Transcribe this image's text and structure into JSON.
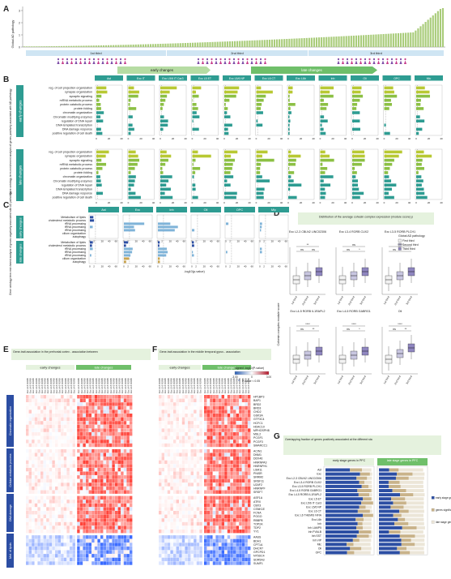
{
  "panel_labels": [
    "A",
    "B",
    "C",
    "D",
    "E",
    "F",
    "G"
  ],
  "panelA": {
    "ylabel": "Global AD pathology",
    "thirds": [
      "1st third",
      "2nd third",
      "3rd third"
    ],
    "arrows": [
      "early changes",
      "late changes"
    ],
    "yticks": [
      "0",
      "1",
      "2",
      "3"
    ]
  },
  "cell_types_B": [
    "Ast",
    "Exc IT",
    "Exc L5/6 IT Car3",
    "Exc L5 ET",
    "Exc L5/6 NP",
    "Exc L6 CT",
    "Exc L6b",
    "Inh",
    "Oli",
    "OPC",
    "Mic"
  ],
  "processes_B": [
    "reg. of cell projection organization",
    "synapse organization",
    "synaptic signaling",
    "mRNA metabolic process",
    "protein catabolic process",
    "protein folding",
    "chromatin organization",
    "Chromatin modifying enzymes",
    "regulation of DNA repair",
    "DNA templated transcription",
    "DNA damage response",
    "positive regulation of cell death"
  ],
  "panelB": {
    "ylabel": "Gene ontology term enrichment analysis of genes positively associated with AD pathology",
    "row_labels": [
      "early changes",
      "late changes"
    ],
    "xlabel": "-log10(p-value)",
    "xticks": [
      "0",
      "20",
      "40"
    ]
  },
  "cell_types_C": [
    "Ast",
    "Exc",
    "Inh",
    "Oli",
    "OPC",
    "Mic"
  ],
  "processes_C": [
    "Metabolism of lipids",
    "cholesterol metabolic process",
    "rRNA processing",
    "tRNA processing",
    "rRNA processing",
    "cilium organization",
    "autophagy"
  ],
  "panelC": {
    "ylabel": "Gene ontology term enrichment analysis of genes negatively associated with AD pathology",
    "row_labels": [
      "early changes",
      "late changes"
    ],
    "xlabel": "-log10(p-value)",
    "xticks": [
      "0",
      "2",
      "20",
      "40",
      "60"
    ]
  },
  "panelD": {
    "title": "Distribution of the average cohesin complex expression (module score) per individual in the cell types indicated",
    "ylabel": "Cohesin complex module score",
    "legend_title": "Global AD pathology",
    "legend": [
      "First third",
      "Second third",
      "Third third"
    ],
    "xcats": [
      "1st third",
      "2nd third",
      "3rd third"
    ],
    "plots": [
      {
        "title": "Exc L2-3 CBLN2 LINC02306",
        "sig": [
          "ns",
          "ns",
          "**"
        ]
      },
      {
        "title": "Exc L3-4 RORB CUX2",
        "sig": [
          "ns",
          "*",
          "ns"
        ]
      },
      {
        "title": "Exc L3-5 RORB PLCH1",
        "sig": [
          "ns",
          "*",
          "****"
        ]
      },
      {
        "title": "Exc L4-5 RORB IL1RAPL2",
        "sig": [
          "ns",
          "**",
          "****"
        ]
      },
      {
        "title": "Exc L4-5 RORB GABRG1",
        "sig": [
          "ns",
          "*",
          "****"
        ]
      },
      {
        "title": "Oli",
        "sig": [
          "ns",
          "**",
          "****"
        ]
      }
    ]
  },
  "panelE": {
    "title": "Gene-trait association in the prefrontal cortex - association between the expression level of genes (rows) and global AD pathology",
    "headers": [
      "early changes",
      "late changes"
    ]
  },
  "panelF": {
    "title": "Gene-trait association in the middle temporal gyrus - association between the expression level of genes (rows) and continuous pseudo-progression score",
    "headers": [
      "early changes",
      "late changes"
    ],
    "colorbar_label": "signed -log10(P-value)",
    "colorbar_ticks": [
      "-3.00",
      "0",
      "3.00"
    ],
    "pvalue_note": "P-value < 0.05"
  },
  "row_groups": [
    "Chromatin organization",
    "Cellular metabolic process",
    "DNA damage",
    "Met. of lipids"
  ],
  "genes": [
    "HP1BP3",
    "BAP1",
    "BRD2",
    "BRD3",
    "CHD2",
    "GSK3A",
    "GTF3C4",
    "HCFC1",
    "HDAC10",
    "MPHOSPH8",
    "MSL2",
    "PCGF1",
    "PCGF3",
    "SMARCC1",
    "ACIN1",
    "DNM1",
    "DDX46",
    "HNRNPA3",
    "HNRNPH1",
    "LSM11",
    "PNISR",
    "SRRM2",
    "SRSF11",
    "U2AF2",
    "HNRNPF",
    "SRSF7",
    "ASF1A",
    "ATRX",
    "CBX3",
    "CSNK1E",
    "FCNA",
    "POGO",
    "RBBP8",
    "TOP2A",
    "TDP2",
    "YY1",
    "AASS",
    "BDH1",
    "CPT1A",
    "DHCR7",
    "GPCPD1",
    "NT5DC4",
    "SDR5A3",
    "SUMF1"
  ],
  "panelG": {
    "title": "Overlapping fraction of genes positively associated at the different stages of disease progression in the prefrontal cortex with genes positively associated at the different stages of disease progression in the middle temporal gyrus",
    "headers": [
      "early stage genes in PFC",
      "late stage genes in PFC"
    ],
    "legend": [
      "early stage genes in MTG",
      "genes significant at both early and late stages in MTG",
      "late stage genes in MTG"
    ],
    "colors": [
      "#2c4ea3",
      "#c9b38a",
      "#ece6d8"
    ],
    "celltypes": [
      "Ast",
      "Exc",
      "Exc L2-3 CBLN2 LINC02306",
      "Exc L3-4 RORB CUX2",
      "Exc L3-5 RORB PLCH1",
      "Exc L4-5 RORB GABRG1",
      "Exc L4-5 RORB IL1RAPL2",
      "Exc L5 ET",
      "Exc L5/6 IT Car3",
      "Exc L5/6 NP",
      "Exc L6 CT",
      "Exc L6 THEMIS NFIA",
      "Exc L6b",
      "Inh",
      "Inh LAMP5",
      "Inh PVALB",
      "Inh SST",
      "Inh VIP",
      "Mic",
      "Oli",
      "OPC"
    ]
  },
  "colors": {
    "teal": "#2e9c92",
    "lime": "#b8c933",
    "green_arrow_early": "#b6dca3",
    "green_arrow_late": "#6fbf6a",
    "navy": "#2c4ea3",
    "tan": "#c9a44f",
    "lightblue": "#7fb3d8",
    "bar_green": "#a9cc7a",
    "thirds_fill": "#cfe5f3"
  }
}
